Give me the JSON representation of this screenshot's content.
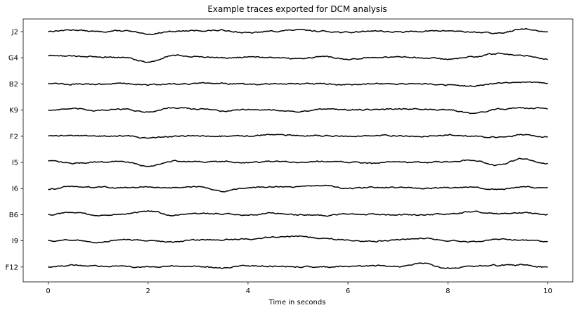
{
  "chart_data": {
    "type": "line",
    "title": "Example traces exported for DCM analysis",
    "xlabel": "Time in seconds",
    "ylabel": "",
    "xlim": [
      -0.5,
      10.5
    ],
    "x_ticks": [
      0,
      2,
      4,
      6,
      8,
      10
    ],
    "x_tick_labels": [
      "0",
      "2",
      "4",
      "6",
      "8",
      "10"
    ],
    "grid": false,
    "legend": "none",
    "line_color": "#000000",
    "channels": [
      "J2",
      "G4",
      "B2",
      "K9",
      "F2",
      "I5",
      "I6",
      "B6",
      "I9",
      "F12"
    ],
    "series": [
      {
        "name": "J2",
        "x": [
          0,
          0.5,
          1,
          1.5,
          2,
          2.5,
          3,
          3.5,
          4,
          4.5,
          5,
          5.5,
          6,
          6.5,
          7,
          7.5,
          8,
          8.5,
          9,
          9.5,
          10
        ],
        "values": [
          0.1,
          0.4,
          0.0,
          0.2,
          -0.6,
          0.1,
          0.2,
          0.3,
          -0.3,
          0.1,
          0.4,
          0.1,
          -0.2,
          0.2,
          -0.1,
          0.1,
          0.2,
          -0.1,
          -0.4,
          0.6,
          0.0
        ]
      },
      {
        "name": "G4",
        "x": [
          0,
          0.5,
          1,
          1.5,
          2,
          2.5,
          3,
          3.5,
          4,
          4.5,
          5,
          5.5,
          6,
          6.5,
          7,
          7.5,
          8,
          8.5,
          9,
          9.5,
          10
        ],
        "values": [
          0.5,
          0.4,
          0.2,
          0.1,
          -1.0,
          0.6,
          0.3,
          -0.1,
          0.2,
          0.1,
          -0.2,
          0.3,
          -0.4,
          0.1,
          0.2,
          0.0,
          -0.3,
          0.2,
          1.0,
          0.5,
          -0.3
        ]
      },
      {
        "name": "B2",
        "x": [
          0,
          0.5,
          1,
          1.5,
          2,
          2.5,
          3,
          3.5,
          4,
          4.5,
          5,
          5.5,
          6,
          6.5,
          7,
          7.5,
          8,
          8.5,
          9,
          9.5,
          10
        ],
        "values": [
          0.2,
          -0.1,
          0.0,
          0.1,
          -0.2,
          0.0,
          0.1,
          0.1,
          -0.1,
          0.0,
          0.1,
          0.0,
          -0.2,
          0.1,
          0.0,
          0.1,
          -0.3,
          -0.5,
          0.2,
          0.4,
          0.2
        ]
      },
      {
        "name": "K9",
        "x": [
          0,
          0.5,
          1,
          1.5,
          2,
          2.5,
          3,
          3.5,
          4,
          4.5,
          5,
          5.5,
          6,
          6.5,
          7,
          7.5,
          8,
          8.5,
          9,
          9.5,
          10
        ],
        "values": [
          0.0,
          0.3,
          -0.1,
          0.2,
          -0.5,
          0.6,
          0.3,
          -0.2,
          0.2,
          0.0,
          -0.4,
          0.2,
          0.1,
          0.1,
          0.3,
          0.2,
          0.0,
          -0.7,
          0.2,
          0.5,
          0.4
        ]
      },
      {
        "name": "F2",
        "x": [
          0,
          0.5,
          1,
          1.5,
          2,
          2.5,
          3,
          3.5,
          4,
          4.5,
          5,
          5.5,
          6,
          6.5,
          7,
          7.5,
          8,
          8.5,
          9,
          9.5,
          10
        ],
        "values": [
          0.1,
          0.2,
          0.0,
          0.1,
          -0.4,
          0.0,
          0.1,
          0.0,
          0.1,
          0.4,
          0.2,
          0.1,
          0.0,
          0.2,
          0.1,
          0.0,
          0.3,
          0.0,
          -0.3,
          0.3,
          -0.1
        ]
      },
      {
        "name": "I5",
        "x": [
          0,
          0.5,
          1,
          1.5,
          2,
          2.5,
          3,
          3.5,
          4,
          4.5,
          5,
          5.5,
          6,
          6.5,
          7,
          7.5,
          8,
          8.5,
          9,
          9.5,
          10
        ],
        "values": [
          0.3,
          -0.2,
          0.1,
          0.2,
          -0.9,
          0.3,
          0.1,
          0.2,
          -0.1,
          0.3,
          0.0,
          0.2,
          0.1,
          -0.2,
          0.1,
          0.0,
          0.2,
          0.5,
          -0.7,
          0.9,
          -0.4
        ]
      },
      {
        "name": "I6",
        "x": [
          0,
          0.5,
          1,
          1.5,
          2,
          2.5,
          3,
          3.5,
          4,
          4.5,
          5,
          5.5,
          6,
          6.5,
          7,
          7.5,
          8,
          8.5,
          9,
          9.5,
          10
        ],
        "values": [
          -0.2,
          0.5,
          0.3,
          0.2,
          0.3,
          0.2,
          0.4,
          -0.6,
          0.2,
          0.4,
          0.5,
          0.7,
          0.0,
          0.3,
          0.2,
          0.1,
          0.2,
          0.3,
          -0.3,
          0.4,
          0.1
        ]
      },
      {
        "name": "B6",
        "x": [
          0,
          0.5,
          1,
          1.5,
          2,
          2.5,
          3,
          3.5,
          4,
          4.5,
          5,
          5.5,
          6,
          6.5,
          7,
          7.5,
          8,
          8.5,
          9,
          9.5,
          10
        ],
        "values": [
          0.0,
          0.6,
          -0.2,
          0.1,
          0.9,
          -0.1,
          0.3,
          0.2,
          -0.1,
          0.4,
          0.0,
          -0.2,
          0.2,
          0.1,
          0.0,
          -0.1,
          0.2,
          0.7,
          0.2,
          0.5,
          0.0
        ]
      },
      {
        "name": "I9",
        "x": [
          0,
          0.5,
          1,
          1.5,
          2,
          2.5,
          3,
          3.5,
          4,
          4.5,
          5,
          5.5,
          6,
          6.5,
          7,
          7.5,
          8,
          8.5,
          9,
          9.5,
          10
        ],
        "values": [
          0.0,
          0.2,
          -0.4,
          0.3,
          0.1,
          -0.3,
          0.2,
          0.3,
          0.4,
          0.9,
          1.1,
          0.6,
          0.2,
          -0.2,
          0.3,
          0.6,
          0.1,
          -0.2,
          0.4,
          0.2,
          -0.2
        ]
      },
      {
        "name": "F12",
        "x": [
          0,
          0.5,
          1,
          1.5,
          2,
          2.5,
          3,
          3.5,
          4,
          4.5,
          5,
          5.5,
          6,
          6.5,
          7,
          7.5,
          8,
          8.5,
          9,
          9.5,
          10
        ],
        "values": [
          0.0,
          0.4,
          0.2,
          0.1,
          0.0,
          0.2,
          0.1,
          -0.2,
          0.3,
          0.2,
          0.1,
          0.0,
          0.2,
          0.3,
          0.1,
          0.8,
          -0.3,
          0.2,
          0.4,
          0.5,
          -0.1
        ]
      }
    ]
  }
}
